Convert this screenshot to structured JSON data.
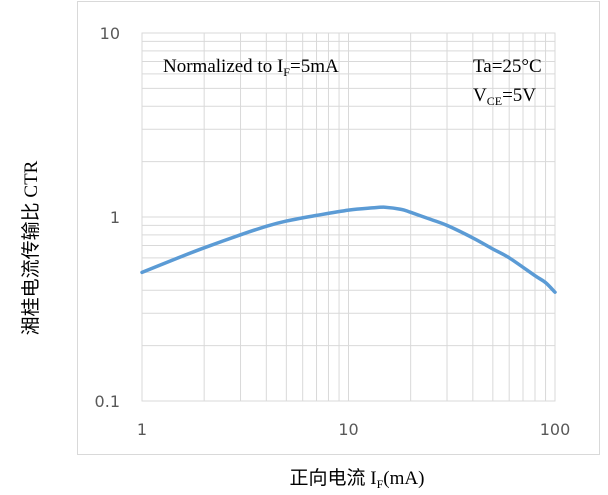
{
  "chart_data": {
    "type": "line",
    "xscale": "log",
    "yscale": "log",
    "xlim": [
      1,
      100
    ],
    "ylim": [
      0.1,
      10
    ],
    "xticks": [
      "1",
      "10",
      "100"
    ],
    "yticks": [
      "10",
      "1",
      "0.1"
    ],
    "xlabel": {
      "main": "正向电流 I",
      "sub": "F",
      "tail": "(mA)"
    },
    "ylabel": "湘桂电流传输比 CTR",
    "annotations": {
      "normalized": {
        "main": "Normalized to I",
        "sub": "F",
        "tail": "=5mA"
      },
      "ta": "Ta=25°C",
      "vce": {
        "main": "V",
        "sub": "CE",
        "tail": "=5V"
      }
    },
    "grid": true,
    "colors": {
      "line": "#5b9bd5",
      "grid": "#d9d9d9",
      "frame": "#d9d9d9"
    },
    "series": [
      {
        "x": [
          1,
          1.5,
          2,
          3,
          4,
          5,
          7,
          10,
          13,
          15,
          18,
          20,
          25,
          30,
          40,
          50,
          60,
          80,
          90,
          100
        ],
        "y": [
          0.5,
          0.6,
          0.68,
          0.8,
          0.89,
          0.95,
          1.02,
          1.09,
          1.12,
          1.13,
          1.1,
          1.06,
          0.97,
          0.9,
          0.77,
          0.67,
          0.6,
          0.48,
          0.44,
          0.39
        ]
      }
    ]
  }
}
